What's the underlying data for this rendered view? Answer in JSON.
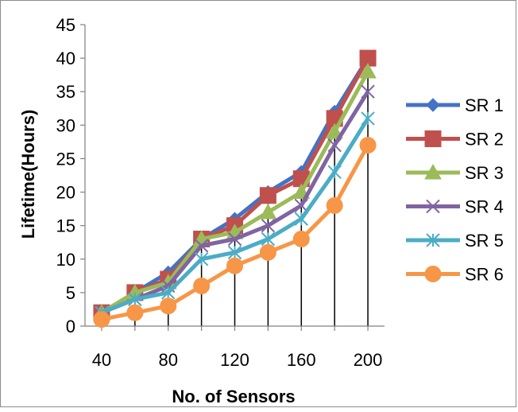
{
  "chart_data": {
    "type": "line",
    "title": "",
    "xlabel": "No. of Sensors",
    "ylabel": "Lifetime(Hours)",
    "x": [
      40,
      60,
      80,
      100,
      120,
      140,
      160,
      180,
      200
    ],
    "x_tick_labels": [
      "40",
      "80",
      "120",
      "160",
      "200"
    ],
    "x_tick_values": [
      40,
      80,
      120,
      160,
      200
    ],
    "ylim": [
      0,
      45
    ],
    "y_ticks": [
      0,
      5,
      10,
      15,
      20,
      25,
      30,
      35,
      40,
      45
    ],
    "grid": false,
    "drop_lines": true,
    "legend_position": "right",
    "series": [
      {
        "name": "SR 1",
        "color": "#4472C4",
        "marker": "diamond",
        "values": [
          2,
          5,
          8,
          13,
          16,
          20,
          23,
          32,
          40
        ]
      },
      {
        "name": "SR 2",
        "color": "#C0504D",
        "marker": "square",
        "values": [
          2,
          5,
          7,
          13,
          15,
          19.5,
          22,
          31,
          40
        ]
      },
      {
        "name": "SR 3",
        "color": "#9BBB59",
        "marker": "triangle",
        "values": [
          2,
          5,
          6.5,
          13,
          14,
          17,
          20,
          29,
          38
        ]
      },
      {
        "name": "SR 4",
        "color": "#8064A2",
        "marker": "x",
        "values": [
          2,
          4,
          6,
          12,
          13,
          15,
          18,
          27,
          35
        ]
      },
      {
        "name": "SR 5",
        "color": "#4BACC6",
        "marker": "star",
        "values": [
          2,
          4,
          5,
          10,
          11,
          13,
          16,
          23,
          31
        ]
      },
      {
        "name": "SR 6",
        "color": "#F79646",
        "marker": "circle",
        "values": [
          1,
          2,
          3,
          6,
          9,
          11,
          13,
          18,
          27
        ]
      }
    ]
  }
}
